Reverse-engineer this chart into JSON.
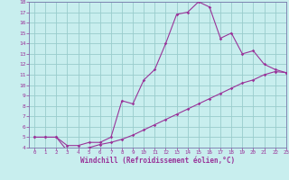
{
  "xlabel": "Windchill (Refroidissement éolien,°C)",
  "background_color": "#c8eeee",
  "line_color": "#993399",
  "grid_color": "#99cccc",
  "spine_color": "#7777aa",
  "x_upper": [
    0,
    1,
    2,
    3,
    4,
    5,
    6,
    7,
    8,
    9,
    10,
    11,
    12,
    13,
    14,
    15,
    16,
    17,
    18,
    19,
    20,
    21,
    22,
    23
  ],
  "y_upper": [
    5.0,
    5.0,
    5.0,
    4.2,
    4.2,
    4.5,
    4.5,
    5.0,
    8.5,
    8.2,
    10.5,
    11.5,
    14.0,
    16.8,
    17.0,
    18.0,
    17.5,
    14.5,
    15.0,
    13.0,
    13.3,
    12.0,
    11.5,
    11.2
  ],
  "x_lower": [
    0,
    1,
    2,
    3,
    4,
    5,
    6,
    7,
    8,
    9,
    10,
    11,
    12,
    13,
    14,
    15,
    16,
    17,
    18,
    19,
    20,
    21,
    22,
    23
  ],
  "y_lower": [
    5.0,
    5.0,
    5.0,
    3.7,
    3.8,
    4.0,
    4.3,
    4.5,
    4.8,
    5.2,
    5.7,
    6.2,
    6.7,
    7.2,
    7.7,
    8.2,
    8.7,
    9.2,
    9.7,
    10.2,
    10.5,
    11.0,
    11.3,
    11.2
  ],
  "ylim": [
    4,
    18
  ],
  "xlim": [
    -0.5,
    23
  ],
  "yticks": [
    4,
    5,
    6,
    7,
    8,
    9,
    10,
    11,
    12,
    13,
    14,
    15,
    16,
    17,
    18
  ],
  "xticks": [
    0,
    1,
    2,
    3,
    4,
    5,
    6,
    7,
    8,
    9,
    10,
    11,
    12,
    13,
    14,
    15,
    16,
    17,
    18,
    19,
    20,
    21,
    22,
    23
  ]
}
